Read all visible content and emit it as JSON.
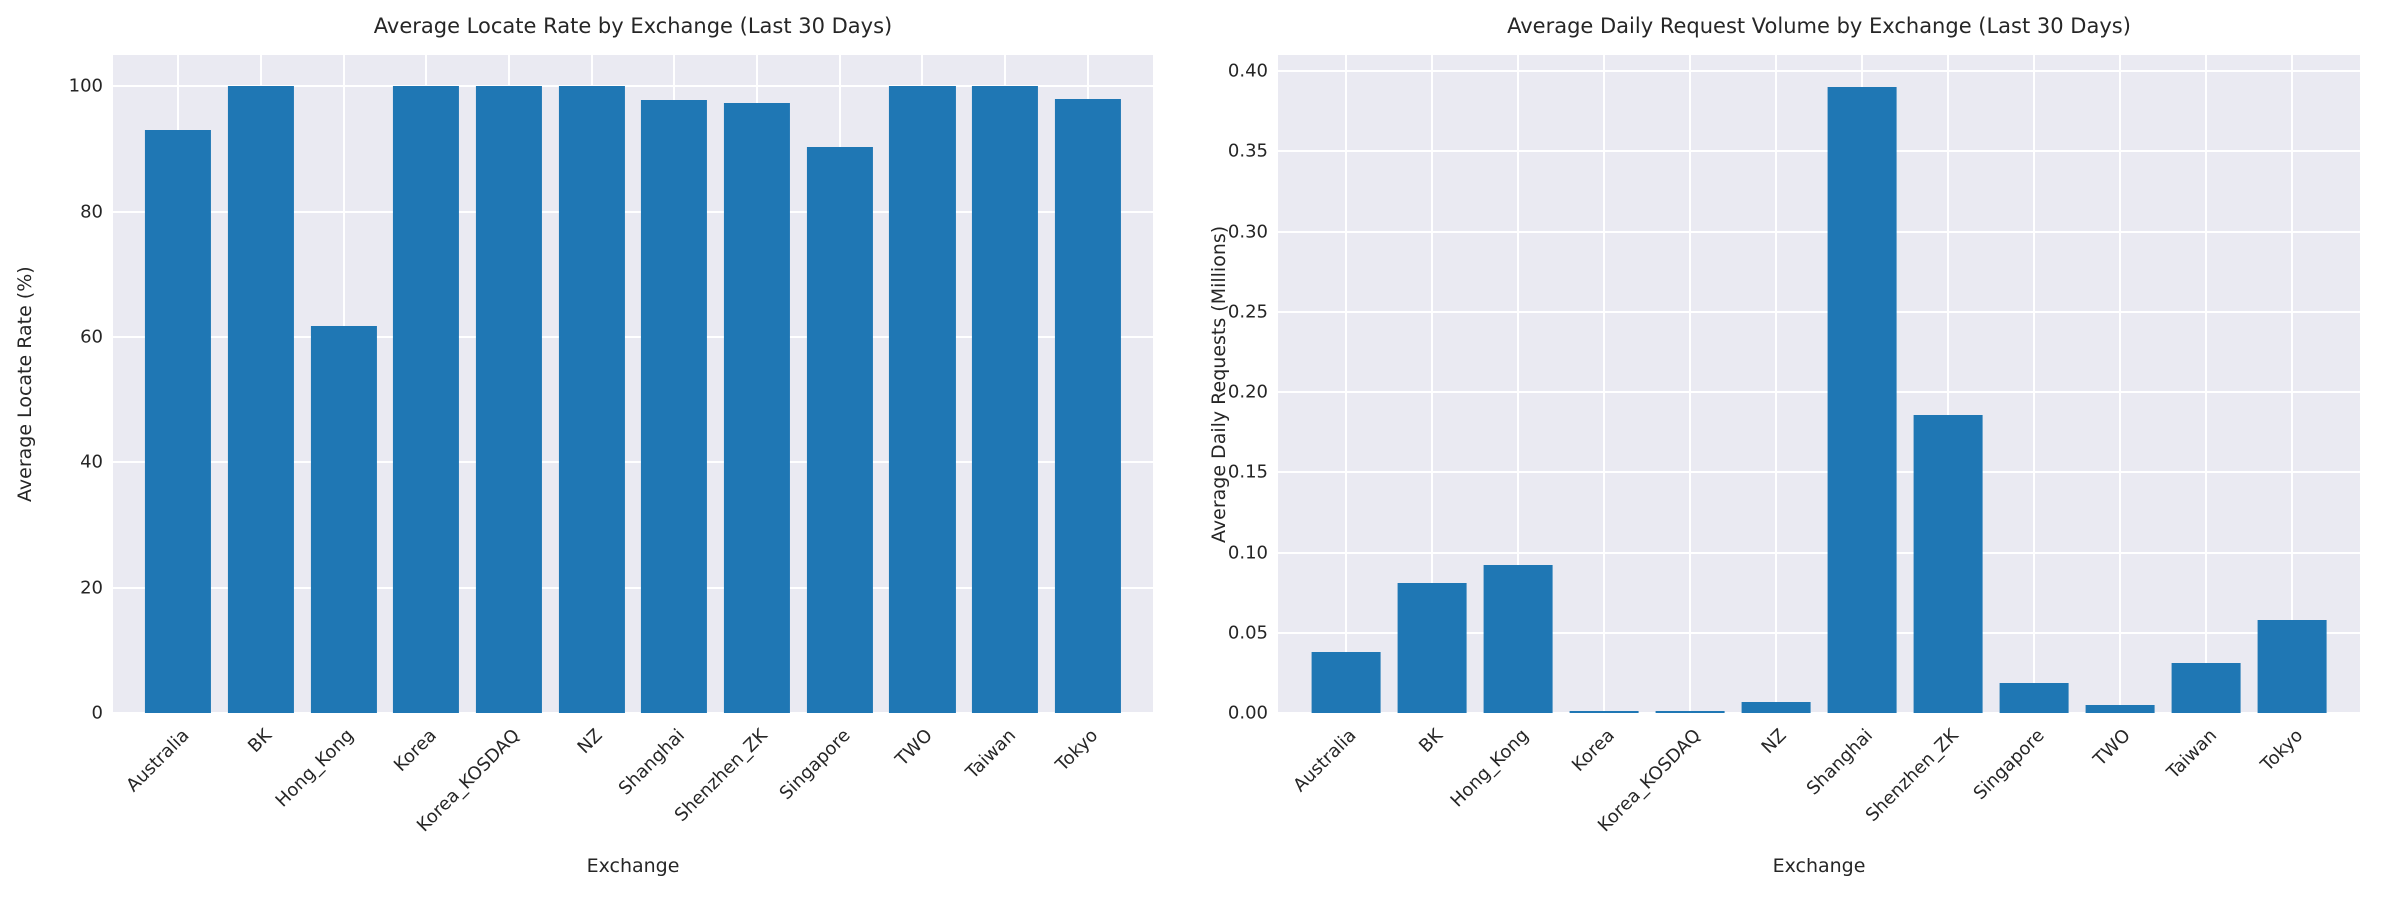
{
  "style": {
    "bar_color": "#1f77b4",
    "plot_background": "#eaeaf2",
    "grid_color": "#ffffff",
    "text_color": "#262626",
    "figure_background": "#ffffff"
  },
  "chart_data": [
    {
      "type": "bar",
      "title": "Average Locate Rate by Exchange (Last 30 Days)",
      "xlabel": "Exchange",
      "ylabel": "Average Locate Rate (%)",
      "categories": [
        "Australia",
        "BK",
        "Hong_Kong",
        "Korea",
        "Korea_KOSDAQ",
        "NZ",
        "Shanghai",
        "Shenzhen_ZK",
        "Singapore",
        "TWO",
        "Taiwan",
        "Tokyo"
      ],
      "values": [
        93.1,
        100,
        61.8,
        100,
        100,
        100,
        97.9,
        97.4,
        90.4,
        100,
        100,
        98.0
      ],
      "ylim": [
        0,
        105
      ],
      "yticks": [
        0,
        20,
        40,
        60,
        80,
        100
      ],
      "ytick_labels": [
        "0",
        "20",
        "40",
        "60",
        "80",
        "100"
      ],
      "grid": true,
      "legend": "none",
      "xtick_rotation": 45
    },
    {
      "type": "bar",
      "title": "Average Daily Request Volume by Exchange (Last 30 Days)",
      "xlabel": "Exchange",
      "ylabel": "Average Daily Requests (Millions)",
      "categories": [
        "Australia",
        "BK",
        "Hong_Kong",
        "Korea",
        "Korea_KOSDAQ",
        "NZ",
        "Shanghai",
        "Shenzhen_ZK",
        "Singapore",
        "TWO",
        "Taiwan",
        "Tokyo"
      ],
      "values": [
        0.038,
        0.081,
        0.092,
        0.001,
        0.001,
        0.007,
        0.39,
        0.186,
        0.019,
        0.005,
        0.031,
        0.058
      ],
      "ylim": [
        0,
        0.41
      ],
      "yticks": [
        0.0,
        0.05,
        0.1,
        0.15,
        0.2,
        0.25,
        0.3,
        0.35,
        0.4
      ],
      "ytick_labels": [
        "0.00",
        "0.05",
        "0.10",
        "0.15",
        "0.20",
        "0.25",
        "0.30",
        "0.35",
        "0.40"
      ],
      "grid": true,
      "legend": "none",
      "xtick_rotation": 45
    }
  ]
}
